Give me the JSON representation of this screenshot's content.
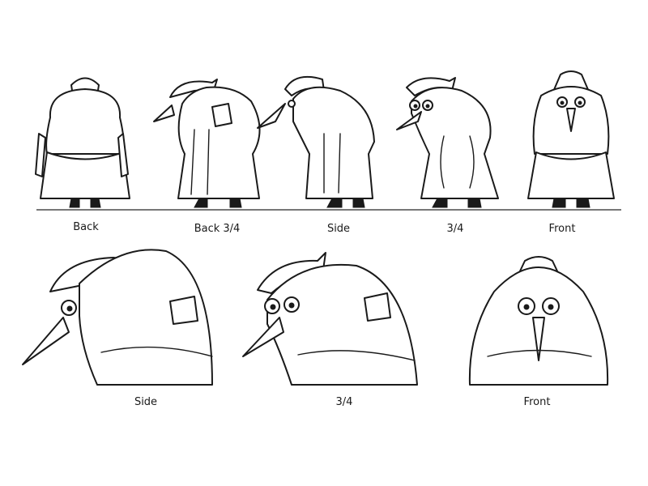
{
  "sheet": {
    "row1_labels": [
      "Back",
      "Back 3/4",
      "Side",
      "3/4",
      "Front"
    ],
    "row2_labels": [
      "Side",
      "3/4",
      "Front"
    ]
  }
}
